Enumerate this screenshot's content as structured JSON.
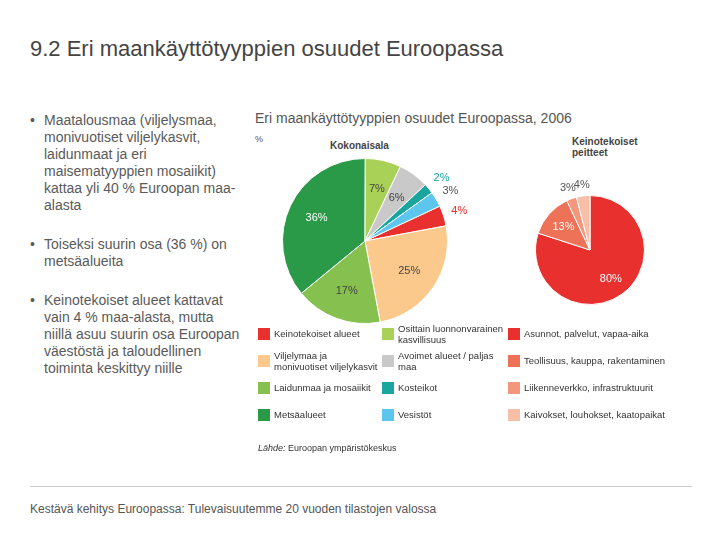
{
  "title": "9.2 Eri maankäyttötyyppien osuudet Euroopassa",
  "bullets": [
    "Maatalousmaa (viljelysmaa, monivuotiset viljelykasvit, laidunmaat ja eri maisematyyppien mosaiikit) kattaa yli 40 % Euroopan maa-alasta",
    "Toiseksi suurin osa (36 %) on metsäalueita",
    "Keinotekoiset alueet kattavat vain 4 % maa-alasta, mutta niillä asuu suurin osa Euroopan väestöstä ja taloudellinen toiminta keskittyy niille"
  ],
  "heading": "Eri maankäyttötyyppien osuudet Euroopassa, 2006",
  "unit": "%",
  "source_label": "Lähde:",
  "source_text": "Euroopan ympäristökeskus",
  "footer": "Kestävä kehitys Euroopassa: Tulevaisuutemme 20 vuoden tilastojen valossa",
  "chart_data": [
    {
      "type": "pie",
      "title": "Kokonaisala",
      "categories": [
        "Keinotekoiset alueet",
        "Viljelymaa ja monivuotiset viljelykasvit",
        "Laidunmaa ja mosaiikit",
        "Metsäalueet",
        "Osittain luonnonvarainen kasvillisuus",
        "Avoimet alueet / paljas maa",
        "Kosteikot",
        "Vesistöt"
      ],
      "values": [
        4,
        25,
        17,
        36,
        7,
        6,
        2,
        3
      ],
      "value_labels": [
        "4%",
        "25%",
        "17%",
        "36%",
        "7%",
        "6%",
        "2%",
        "3%"
      ],
      "colors": [
        "#e8312f",
        "#fcc98c",
        "#86c04e",
        "#2a9a48",
        "#a9d158",
        "#c9c9c9",
        "#1aa69f",
        "#5cc6ef"
      ],
      "data_labels": true
    },
    {
      "type": "pie",
      "title": "Keinotekoiset peitteet",
      "categories": [
        "Asunnot, palvelut, vapaa-aika",
        "Teollisuus, kauppa, rakentaminen",
        "Liikenneverkko, infrastruktuurit",
        "Kaivokset, louhokset, kaatopaikat"
      ],
      "values": [
        80,
        13,
        3,
        4
      ],
      "value_labels": [
        "80%",
        "13%",
        "3%",
        "4%"
      ],
      "colors": [
        "#e8312f",
        "#ee7258",
        "#f2977c",
        "#f7bfa8"
      ],
      "data_labels": true
    }
  ]
}
